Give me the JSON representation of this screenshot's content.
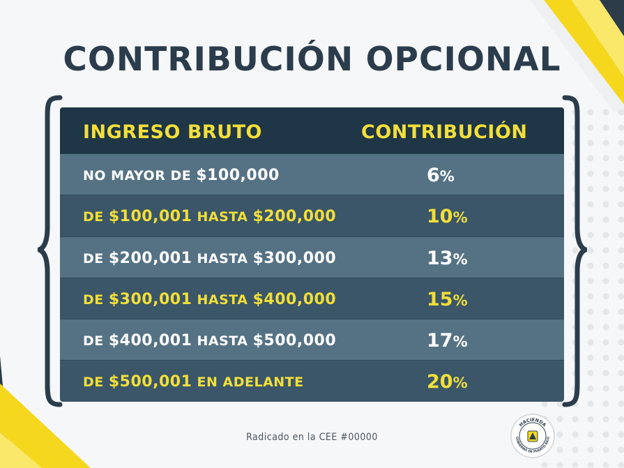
{
  "title": "CONTRIBUCIÓN OPCIONAL",
  "table": {
    "header_left": "INGRESO BRUTO",
    "header_right": "CONTRIBUCIÓN",
    "rows": [
      {
        "pre": "NO MAYOR DE ",
        "a": "$100,000",
        "mid": "",
        "b": "",
        "rate": "6",
        "style": "light"
      },
      {
        "pre": "DE ",
        "a": "$100,001",
        "mid": " HASTA ",
        "b": "$200,000",
        "rate": "10",
        "style": "dark"
      },
      {
        "pre": "DE ",
        "a": "$200,001",
        "mid": " HASTA ",
        "b": "$300,000",
        "rate": "13",
        "style": "light"
      },
      {
        "pre": "DE ",
        "a": "$300,001",
        "mid": " HASTA ",
        "b": "$400,000",
        "rate": "15",
        "style": "dark"
      },
      {
        "pre": "DE ",
        "a": "$400,001",
        "mid": " HASTA ",
        "b": "$500,000",
        "rate": "17",
        "style": "light"
      },
      {
        "pre": "DE ",
        "a": "$500,001",
        "mid": " EN ADELANTE",
        "b": "",
        "rate": "20",
        "style": "dark"
      }
    ],
    "percent_symbol": "%"
  },
  "footer": "Radicado en la CEE #00000",
  "seal": {
    "top_text": "HACIENDA",
    "bottom_text": "GOBIERNO DE PUERTO RICO"
  },
  "colors": {
    "accent_yellow": "#f3df3a",
    "header_navy": "#1f3646",
    "row_light": "#557284",
    "row_dark": "#3a5668",
    "title": "#2b3d4c"
  }
}
